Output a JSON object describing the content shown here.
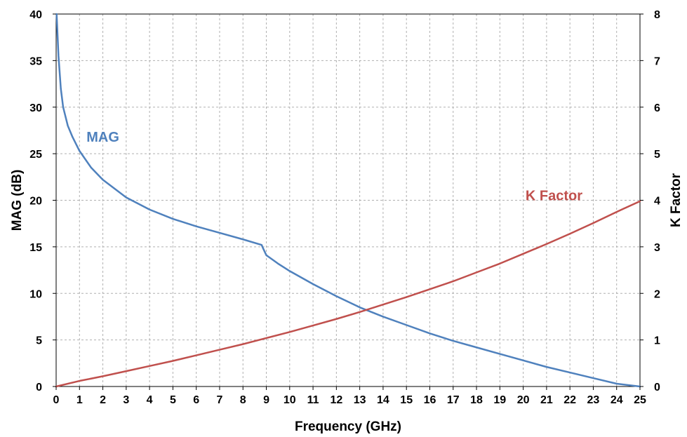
{
  "chart_data": {
    "type": "line",
    "title": "",
    "xlabel": "Frequency (GHz)",
    "ylabel_left": "MAG (dB)",
    "ylabel_right": "K Factor",
    "xlim": [
      0,
      25
    ],
    "ylim_left": [
      0,
      40
    ],
    "ylim_right": [
      0,
      8
    ],
    "x_ticks": [
      "0",
      "1",
      "2",
      "3",
      "4",
      "5",
      "6",
      "7",
      "8",
      "9",
      "10",
      "11",
      "12",
      "13",
      "14",
      "15",
      "16",
      "17",
      "18",
      "19",
      "20",
      "21",
      "22",
      "23",
      "24",
      "25"
    ],
    "y_left_ticks": [
      "0",
      "5",
      "10",
      "15",
      "20",
      "25",
      "30",
      "35",
      "40"
    ],
    "y_right_ticks": [
      "0",
      "1",
      "2",
      "3",
      "4",
      "5",
      "6",
      "7",
      "8"
    ],
    "grid": true,
    "series": [
      {
        "name": "MAG",
        "axis": "left",
        "color": "#4F81BD",
        "x": [
          0.02,
          0.1,
          0.2,
          0.3,
          0.5,
          0.7,
          1,
          1.5,
          2,
          3,
          4,
          5,
          6,
          7,
          8,
          8.8,
          8.85,
          9,
          9.5,
          10,
          11,
          12,
          13,
          14,
          15,
          16,
          17,
          18,
          19,
          20,
          21,
          22,
          23,
          24,
          25
        ],
        "values": [
          40,
          35.5,
          32,
          30,
          28,
          26.8,
          25.3,
          23.5,
          22.2,
          20.3,
          19,
          18,
          17.2,
          16.5,
          15.8,
          15.2,
          14.9,
          14.1,
          13.2,
          12.4,
          11,
          9.7,
          8.5,
          7.5,
          6.6,
          5.7,
          4.9,
          4.2,
          3.5,
          2.8,
          2.1,
          1.5,
          0.9,
          0.3,
          0
        ]
      },
      {
        "name": "K Factor",
        "axis": "right",
        "color": "#C0504D",
        "x": [
          0,
          1,
          2,
          3,
          4,
          5,
          6,
          7,
          8,
          9,
          10,
          11,
          12,
          13,
          14,
          15,
          16,
          17,
          18,
          19,
          20,
          21,
          22,
          23,
          24,
          25
        ],
        "values": [
          0,
          0.12,
          0.22,
          0.33,
          0.44,
          0.55,
          0.67,
          0.79,
          0.91,
          1.04,
          1.17,
          1.31,
          1.45,
          1.6,
          1.76,
          1.92,
          2.09,
          2.26,
          2.45,
          2.64,
          2.85,
          3.06,
          3.28,
          3.51,
          3.75,
          3.98
        ]
      }
    ],
    "annotations": [
      {
        "text": "MAG",
        "series": "MAG",
        "x": 1.3,
        "y": 26.3,
        "axis": "left",
        "anchor": "start"
      },
      {
        "text": "K Factor",
        "series": "K Factor",
        "x": 20.1,
        "y": 4.0,
        "axis": "right",
        "anchor": "start"
      }
    ]
  }
}
